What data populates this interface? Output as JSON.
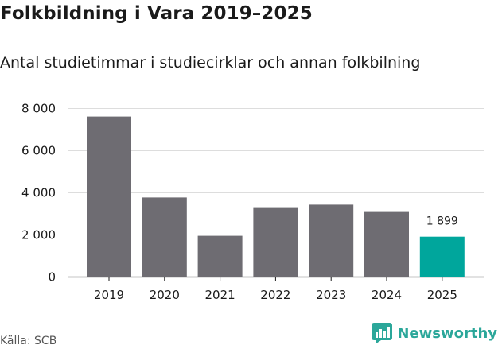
{
  "chart_data": {
    "type": "bar",
    "title": "Folkbildning i Vara 2019–2025",
    "subtitle": "Antal studietimmar i studiecirklar och annan folkbilning",
    "categories": [
      "2019",
      "2020",
      "2021",
      "2022",
      "2023",
      "2024",
      "2025"
    ],
    "values": [
      7600,
      3760,
      1940,
      3260,
      3420,
      3070,
      1899
    ],
    "ylim": [
      0,
      8000
    ],
    "yticks": [
      0,
      2000,
      4000,
      6000,
      8000
    ],
    "ytick_labels": [
      "0",
      "2 000",
      "4 000",
      "6 000",
      "8 000"
    ],
    "grid": true,
    "xlabel": "",
    "ylabel": "",
    "data_labels": [
      {
        "category": "2025",
        "text": "1 899"
      }
    ],
    "colors": {
      "bar": "#6e6c72",
      "highlight": "#00a69c",
      "grid": "#dddddd",
      "axis": "#1a1a1a"
    },
    "highlight_category": "2025"
  },
  "footer": {
    "source": "Källa: SCB",
    "brand": "Newsworthy",
    "brand_icon": "newsworthy-logo-icon"
  }
}
